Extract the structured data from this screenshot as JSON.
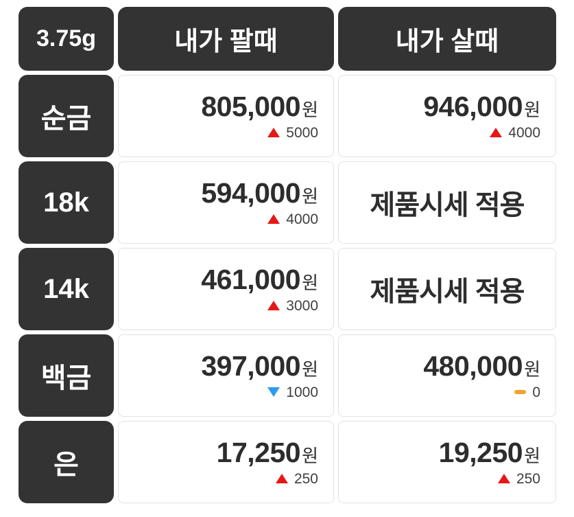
{
  "unit": "3.75g",
  "currency_suffix": "원",
  "columns": {
    "sell": "내가 팔때",
    "buy": "내가 살때"
  },
  "colors": {
    "red": "#e51815",
    "blue": "#2e9bf0",
    "orange": "#f5a02d",
    "dark": "#333333",
    "border": "#e2e2e2"
  },
  "rows": [
    {
      "label": "순금",
      "sell": {
        "price": "805,000",
        "delta": "5000",
        "delta_direction": "up"
      },
      "buy": {
        "price": "946,000",
        "delta": "4000",
        "delta_direction": "up"
      }
    },
    {
      "label": "18k",
      "sell": {
        "price": "594,000",
        "delta": "4000",
        "delta_direction": "up"
      },
      "buy": {
        "text": "제품시세 적용"
      }
    },
    {
      "label": "14k",
      "sell": {
        "price": "461,000",
        "delta": "3000",
        "delta_direction": "up"
      },
      "buy": {
        "text": "제품시세 적용"
      }
    },
    {
      "label": "백금",
      "sell": {
        "price": "397,000",
        "delta": "1000",
        "delta_direction": "down"
      },
      "buy": {
        "price": "480,000",
        "delta": "0",
        "delta_direction": "flat"
      }
    },
    {
      "label": "은",
      "sell": {
        "price": "17,250",
        "delta": "250",
        "delta_direction": "up"
      },
      "buy": {
        "price": "19,250",
        "delta": "250",
        "delta_direction": "up"
      }
    }
  ]
}
